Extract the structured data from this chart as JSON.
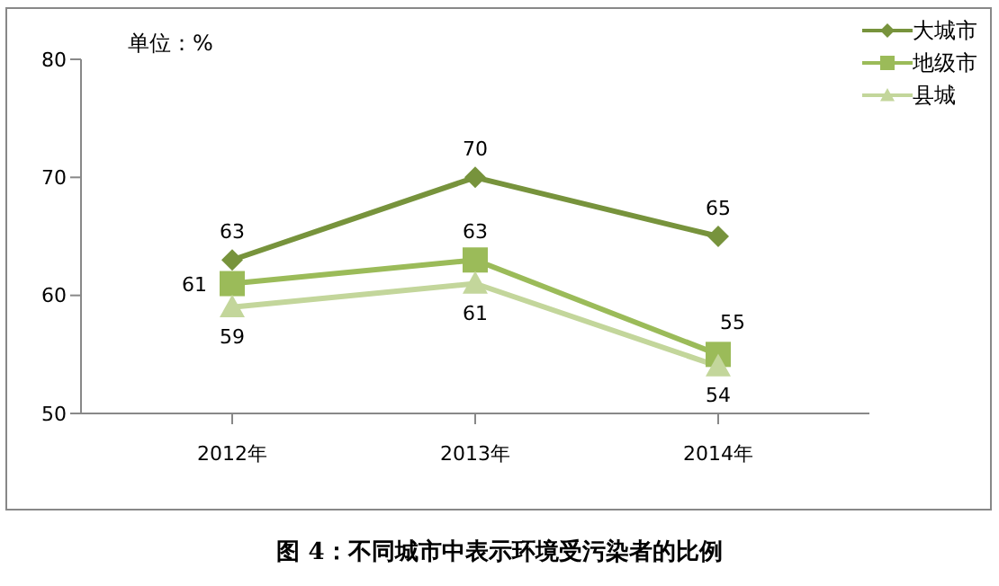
{
  "chart_data": {
    "type": "line",
    "title": "图 4：不同城市中表示环境受污染者的比例",
    "ylabel": "单位：%",
    "categories": [
      "2012年",
      "2013年",
      "2014年"
    ],
    "series": [
      {
        "name": "大城市",
        "color": "#77933c",
        "values": [
          63,
          70,
          65
        ],
        "marker": "diamond"
      },
      {
        "name": "地级市",
        "color": "#9bbb59",
        "values": [
          61,
          63,
          55
        ],
        "marker": "square"
      },
      {
        "name": "县城",
        "color": "#c3d69b",
        "values": [
          59,
          61,
          54
        ],
        "marker": "triangle"
      }
    ],
    "ylim": [
      50,
      80
    ],
    "yticks": [
      50,
      60,
      70,
      80
    ],
    "legend": "top right",
    "data_labels": true
  }
}
